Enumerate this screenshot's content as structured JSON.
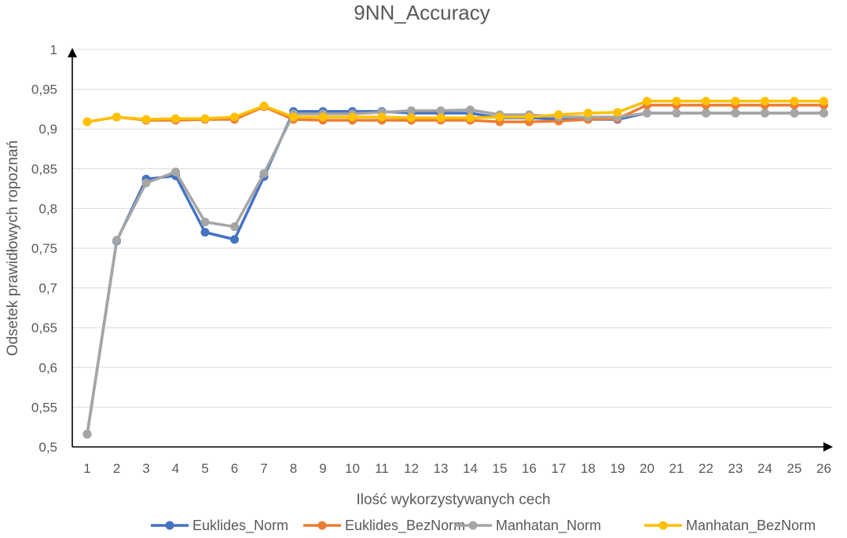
{
  "chart_data": {
    "type": "line",
    "title": "9NN_Accuracy",
    "xlabel": "Ilość wykorzystywanych cech",
    "ylabel": "Odsetek prawidłowych ropoznań",
    "ylim": [
      0.5,
      1
    ],
    "y_ticks": [
      "0,5",
      "0,55",
      "0,6",
      "0,65",
      "0,7",
      "0,75",
      "0,8",
      "0,85",
      "0,9",
      "0,95",
      "1"
    ],
    "x": [
      "1",
      "2",
      "3",
      "4",
      "5",
      "6",
      "7",
      "8",
      "9",
      "10",
      "11",
      "12",
      "13",
      "14",
      "15",
      "16",
      "17",
      "18",
      "19",
      "20",
      "21",
      "22",
      "23",
      "24",
      "25",
      "26"
    ],
    "grid": "horizontal",
    "legend_position": "bottom",
    "series": [
      {
        "name": "Euklides_Norm",
        "color": "#4472C4",
        "values": [
          0.516,
          0.759,
          0.837,
          0.841,
          0.77,
          0.761,
          0.84,
          0.922,
          0.922,
          0.922,
          0.922,
          0.92,
          0.92,
          0.92,
          0.914,
          0.914,
          0.912,
          0.912,
          0.912,
          0.92,
          0.92,
          0.92,
          0.92,
          0.92,
          0.92,
          0.92
        ]
      },
      {
        "name": "Euklides_BezNorm",
        "color": "#ED7D31",
        "values": [
          0.909,
          0.915,
          0.911,
          0.911,
          0.912,
          0.912,
          0.928,
          0.912,
          0.911,
          0.911,
          0.911,
          0.911,
          0.911,
          0.911,
          0.909,
          0.909,
          0.91,
          0.912,
          0.913,
          0.93,
          0.93,
          0.93,
          0.93,
          0.93,
          0.93,
          0.93
        ]
      },
      {
        "name": "Manhatan_Norm",
        "color": "#A5A5A5",
        "values": [
          0.516,
          0.76,
          0.832,
          0.846,
          0.783,
          0.777,
          0.844,
          0.919,
          0.919,
          0.919,
          0.921,
          0.923,
          0.923,
          0.924,
          0.918,
          0.918,
          0.915,
          0.915,
          0.915,
          0.92,
          0.92,
          0.92,
          0.92,
          0.92,
          0.92,
          0.92
        ]
      },
      {
        "name": "Manhatan_BezNorm",
        "color": "#FFC000",
        "values": [
          0.909,
          0.915,
          0.912,
          0.913,
          0.913,
          0.915,
          0.929,
          0.915,
          0.915,
          0.915,
          0.915,
          0.914,
          0.914,
          0.914,
          0.915,
          0.915,
          0.918,
          0.92,
          0.921,
          0.935,
          0.935,
          0.935,
          0.935,
          0.935,
          0.935,
          0.935
        ]
      }
    ]
  }
}
